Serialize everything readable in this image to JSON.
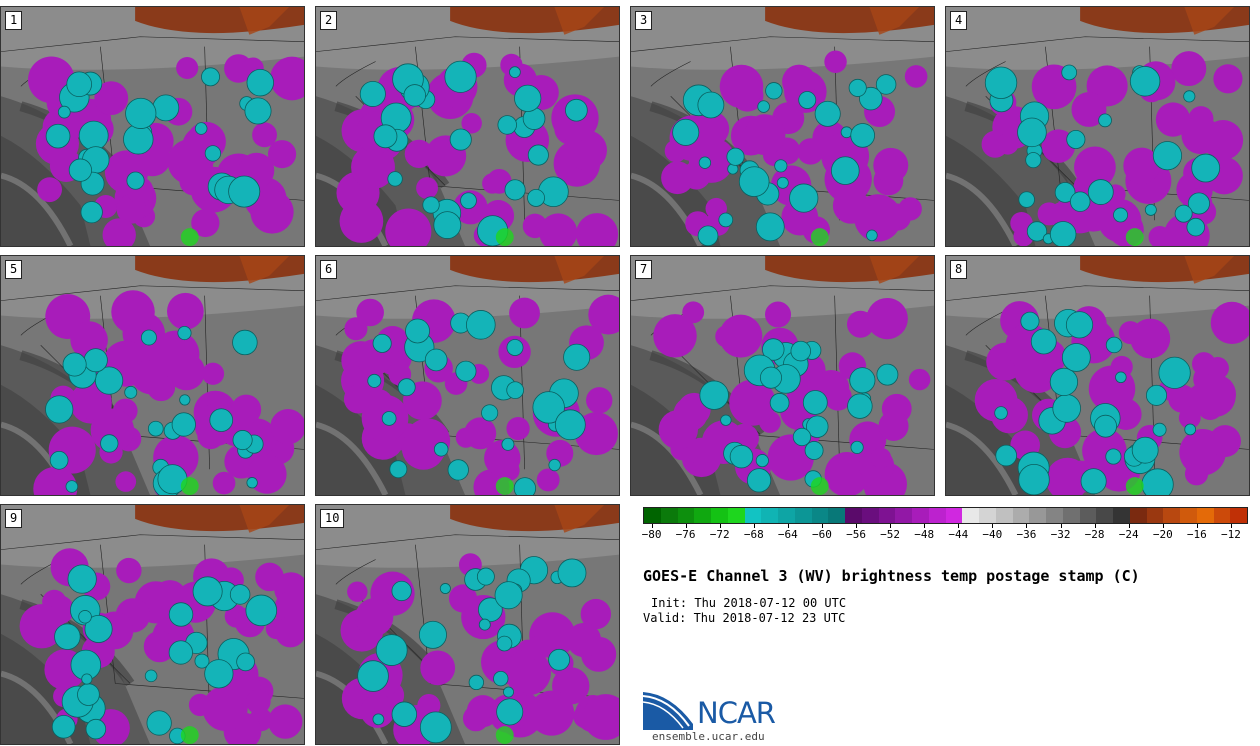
{
  "panels": [
    {
      "label": "1"
    },
    {
      "label": "2"
    },
    {
      "label": "3"
    },
    {
      "label": "4"
    },
    {
      "label": "5"
    },
    {
      "label": "6"
    },
    {
      "label": "7"
    },
    {
      "label": "8"
    },
    {
      "label": "9"
    },
    {
      "label": "10"
    }
  ],
  "colorbar": {
    "ticks": [
      "−80",
      "−76",
      "−72",
      "−68",
      "−64",
      "−60",
      "−56",
      "−52",
      "−48",
      "−44",
      "−40",
      "−36",
      "−32",
      "−28",
      "−24",
      "−20",
      "−16",
      "−12"
    ],
    "min": -81,
    "max": -10,
    "colors": [
      "#006400",
      "#0b7a0b",
      "#0d8f0d",
      "#10a810",
      "#14c214",
      "#1ed61e",
      "#12c3c3",
      "#10b4b4",
      "#0ea5a5",
      "#0c9696",
      "#0a8787",
      "#087878",
      "#5a0a6a",
      "#6a0e7e",
      "#7e1292",
      "#9218a6",
      "#a81cba",
      "#bc22ce",
      "#d028e0",
      "#e8e8e8",
      "#d4d4d4",
      "#c0c0c0",
      "#acacac",
      "#989898",
      "#848484",
      "#707070",
      "#5c5c5c",
      "#484848",
      "#343434",
      "#7a2a10",
      "#9a3810",
      "#b84810",
      "#d05a0c",
      "#e46a08",
      "#cc4a0a",
      "#c03006"
    ]
  },
  "title": "GOES-E Channel 3 (WV) brightness temp postage stamp (C)",
  "init": "Init: Thu 2018-07-12 00 UTC",
  "valid": "Valid: Thu 2018-07-12 23 UTC",
  "logo": {
    "name": "NCAR",
    "url": "ensemble.ucar.edu"
  }
}
